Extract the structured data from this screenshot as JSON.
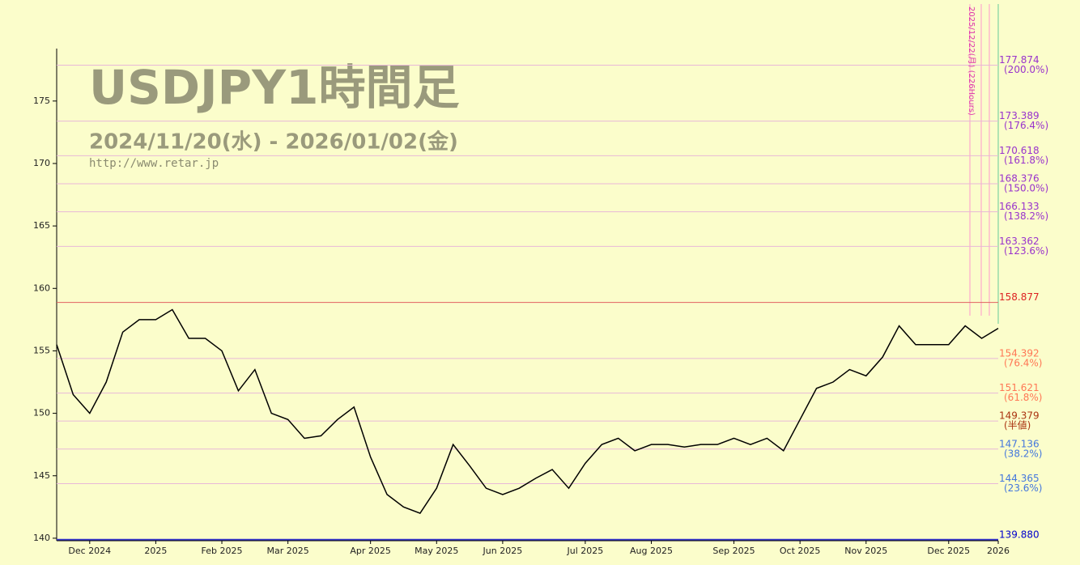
{
  "chart_data": {
    "type": "line",
    "title": "USDJPY1時間足",
    "subtitle": "2024/11/20(水) - 2026/01/02(金)",
    "source": "http://www.retar.jp",
    "annotation": "2025/12/22(月) (226Hours)",
    "categories": [
      null,
      null,
      "Dec 2024",
      null,
      null,
      null,
      "2025",
      null,
      null,
      null,
      "Feb 2025",
      null,
      null,
      null,
      "Mar 2025",
      null,
      null,
      null,
      null,
      "Apr 2025",
      null,
      null,
      null,
      "May 2025",
      null,
      null,
      null,
      "Jun 2025",
      null,
      null,
      null,
      null,
      "Jul 2025",
      null,
      null,
      null,
      "Aug 2025",
      null,
      null,
      null,
      null,
      "Sep 2025",
      null,
      null,
      null,
      "Oct 2025",
      null,
      null,
      null,
      "Nov 2025",
      null,
      null,
      null,
      null,
      "Dec 2025",
      null,
      null,
      "2026"
    ],
    "values": [
      155.5,
      151.5,
      150.0,
      152.5,
      156.5,
      157.5,
      157.5,
      158.3,
      156.0,
      156.0,
      155.0,
      151.8,
      153.5,
      150.0,
      149.5,
      148.0,
      148.2,
      149.5,
      150.5,
      146.5,
      143.5,
      142.5,
      142.0,
      144.0,
      147.5,
      145.8,
      144.0,
      143.5,
      144.0,
      144.8,
      145.5,
      144.0,
      146.0,
      147.5,
      148.0,
      147.0,
      147.5,
      147.5,
      147.3,
      147.5,
      147.5,
      148.0,
      147.5,
      148.0,
      147.0,
      149.5,
      152.0,
      152.5,
      153.5,
      153.0,
      154.5,
      157.0,
      155.5,
      155.5,
      155.5,
      157.0,
      156.0,
      156.8
    ],
    "color": "#000000",
    "ylim": [
      139.8,
      179.2
    ],
    "yticks": [
      140,
      145,
      150,
      155,
      160,
      165,
      170,
      175
    ],
    "levels": [
      {
        "value": 177.874,
        "label": "177.874",
        "note": "(200.0%)",
        "color": "#9933cc"
      },
      {
        "value": 173.389,
        "label": "173.389",
        "note": "(176.4%)",
        "color": "#9933cc"
      },
      {
        "value": 170.618,
        "label": "170.618",
        "note": "(161.8%)",
        "color": "#9933cc"
      },
      {
        "value": 168.376,
        "label": "168.376",
        "note": "(150.0%)",
        "color": "#9933cc"
      },
      {
        "value": 166.133,
        "label": "166.133",
        "note": "(138.2%)",
        "color": "#9933cc"
      },
      {
        "value": 163.362,
        "label": "163.362",
        "note": "(123.6%)",
        "color": "#9933cc"
      },
      {
        "value": 158.877,
        "label": "158.877",
        "note": null,
        "color": "#dd2222"
      },
      {
        "value": 154.392,
        "label": "154.392",
        "note": "(76.4%)",
        "color": "#ff7755"
      },
      {
        "value": 151.621,
        "label": "151.621",
        "note": "(61.8%)",
        "color": "#ff7755"
      },
      {
        "value": 149.379,
        "label": "149.379",
        "note": "(半値)",
        "color": "#aa3311"
      },
      {
        "value": 147.136,
        "label": "147.136",
        "note": "(38.2%)",
        "color": "#4477dd"
      },
      {
        "value": 144.365,
        "label": "144.365",
        "note": "(23.6%)",
        "color": "#4477dd"
      },
      {
        "value": 139.88,
        "label": "139.880",
        "note": null,
        "color": "#0000cc"
      }
    ]
  }
}
